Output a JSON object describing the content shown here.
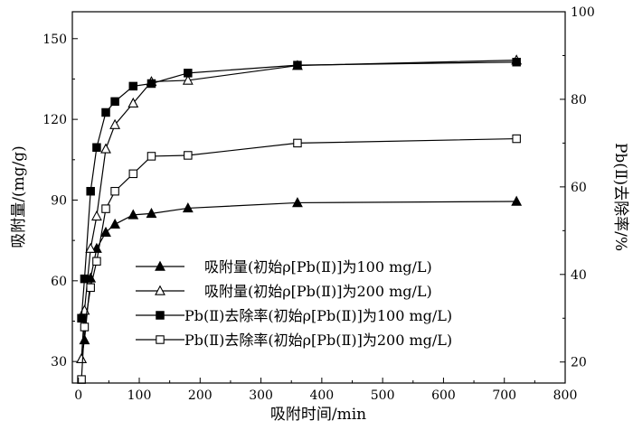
{
  "chart_data": {
    "type": "line",
    "xlabel": "吸附时间/min",
    "ylabel_left": "吸附量/(mg/g)",
    "ylabel_right": "Pb(Ⅱ)去除率/%",
    "xlim": [
      -10,
      800
    ],
    "ylim_left": [
      22,
      160
    ],
    "ylim_right": [
      15.2,
      100
    ],
    "x_ticks": [
      0,
      100,
      200,
      300,
      400,
      500,
      600,
      700,
      800
    ],
    "y_left_ticks": [
      30,
      60,
      90,
      120,
      150
    ],
    "y_right_ticks": [
      20,
      40,
      60,
      80,
      100
    ],
    "legend_position": "bottom-right",
    "series": [
      {
        "name": "吸附量(初始ρ[Pb(Ⅱ)]为100 mg/L)",
        "axis": "left",
        "marker": "filled-triangle",
        "x": [
          5,
          10,
          20,
          30,
          45,
          60,
          90,
          120,
          180,
          360,
          720
        ],
        "y": [
          31,
          38,
          61,
          72,
          78,
          81,
          84.5,
          85,
          87,
          89,
          89.5
        ]
      },
      {
        "name": "吸附量(初始ρ[Pb(Ⅱ)]为200 mg/L)",
        "axis": "left",
        "marker": "open-triangle",
        "x": [
          5,
          10,
          20,
          30,
          45,
          60,
          90,
          120,
          180,
          360,
          720
        ],
        "y": [
          31,
          49,
          72,
          84,
          109,
          118,
          126,
          134,
          134.5,
          140,
          142
        ]
      },
      {
        "name": "Pb(Ⅱ)去除率(初始ρ[Pb(Ⅱ)]为100 mg/L)",
        "axis": "right",
        "marker": "filled-square",
        "x": [
          5,
          10,
          20,
          30,
          45,
          60,
          90,
          120,
          180,
          360,
          720
        ],
        "y": [
          30,
          39,
          59,
          69,
          77,
          79.5,
          83,
          83.6,
          86,
          87.8,
          88.5
        ]
      },
      {
        "name": "Pb(Ⅱ)去除率(初始ρ[Pb(Ⅱ)]为200 mg/L)",
        "axis": "right",
        "marker": "open-square",
        "x": [
          5,
          10,
          20,
          30,
          45,
          60,
          90,
          120,
          180,
          360,
          720
        ],
        "y": [
          16,
          28,
          37,
          43,
          55,
          59,
          63,
          67,
          67.2,
          70,
          71
        ]
      }
    ]
  }
}
